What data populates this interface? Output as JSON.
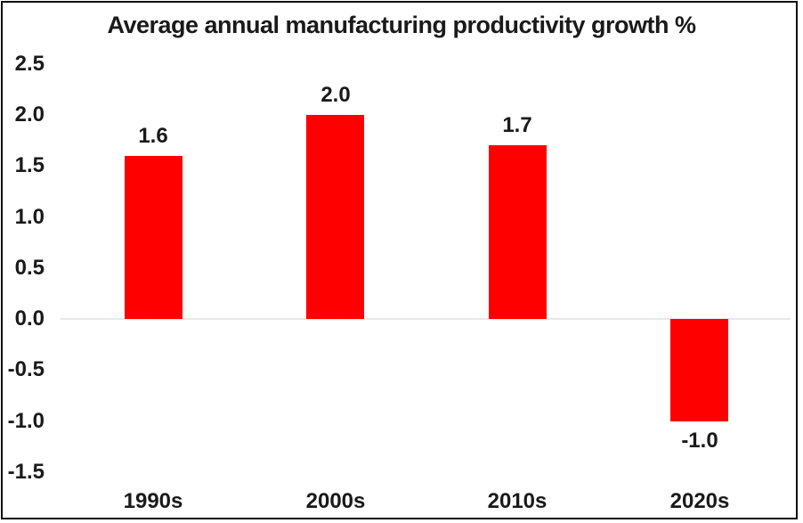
{
  "chart_data": {
    "type": "bar",
    "title": "Average annual manufacturing productivity growth %",
    "categories": [
      "1990s",
      "2000s",
      "2010s",
      "2020s"
    ],
    "values": [
      1.6,
      2.0,
      1.7,
      -1.0
    ],
    "value_labels": [
      "1.6",
      "2.0",
      "1.7",
      "-1.0"
    ],
    "y_ticks": [
      "2.5",
      "2.0",
      "1.5",
      "1.0",
      "0.5",
      "0.0",
      "-0.5",
      "-1.0",
      "-1.5"
    ],
    "ylim": [
      -1.5,
      2.5
    ],
    "xlabel": "",
    "ylabel": "",
    "legend": "none",
    "grid": "zero-line-only",
    "bar_color": "#ff0000",
    "zero_line_color": "#e8e8e8",
    "text_color": "#1a1a1a",
    "border_color": "#0d0d0d"
  }
}
